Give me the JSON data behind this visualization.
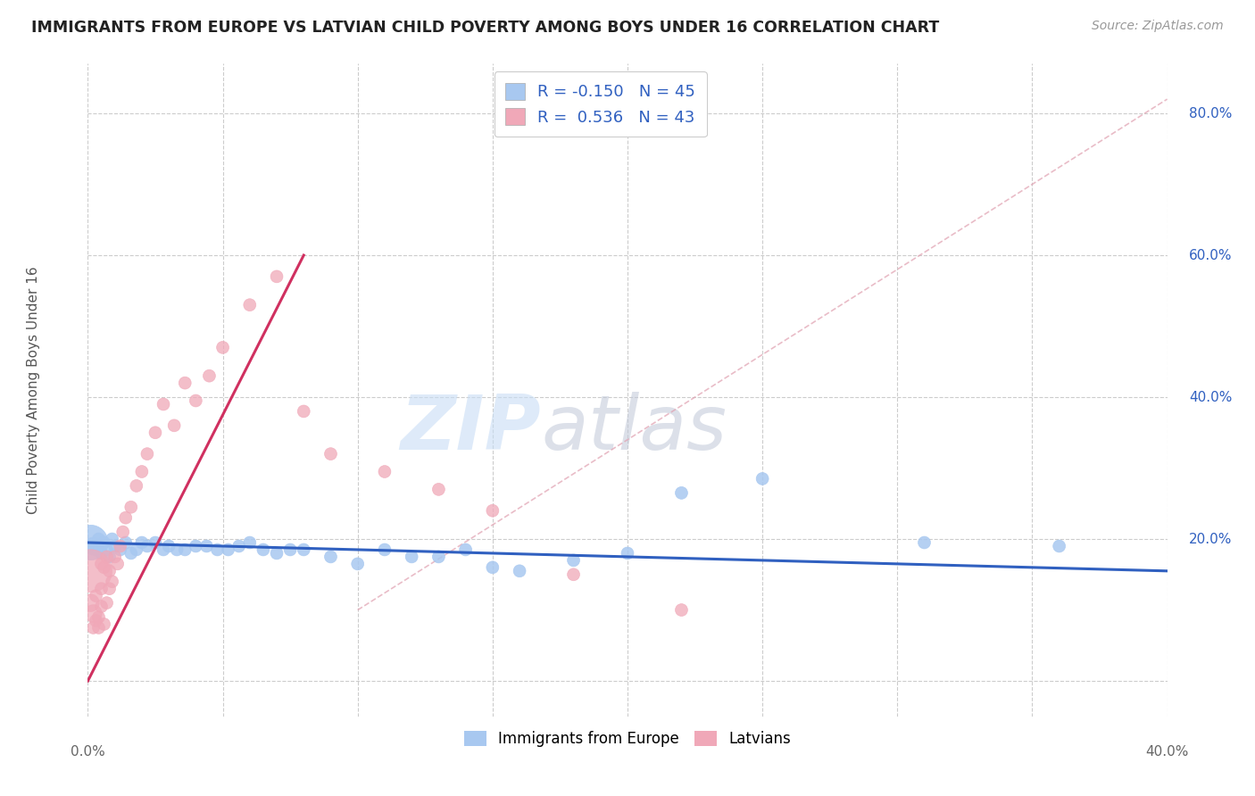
{
  "title": "IMMIGRANTS FROM EUROPE VS LATVIAN CHILD POVERTY AMONG BOYS UNDER 16 CORRELATION CHART",
  "source": "Source: ZipAtlas.com",
  "ylabel": "Child Poverty Among Boys Under 16",
  "xlim": [
    0.0,
    0.4
  ],
  "ylim": [
    -0.05,
    0.87
  ],
  "xticks": [
    0.0,
    0.05,
    0.1,
    0.15,
    0.2,
    0.25,
    0.3,
    0.35,
    0.4
  ],
  "yticks": [
    0.0,
    0.2,
    0.4,
    0.6,
    0.8
  ],
  "blue_R": -0.15,
  "blue_N": 45,
  "pink_R": 0.536,
  "pink_N": 43,
  "blue_color": "#a8c8f0",
  "pink_color": "#f0a8b8",
  "blue_line_color": "#3060c0",
  "pink_line_color": "#d03060",
  "watermark_zip": "ZIP",
  "watermark_atlas": "atlas",
  "background_color": "#ffffff",
  "grid_color": "#cccccc",
  "blue_scatter_x": [
    0.001,
    0.002,
    0.003,
    0.004,
    0.005,
    0.006,
    0.007,
    0.008,
    0.009,
    0.01,
    0.012,
    0.014,
    0.016,
    0.018,
    0.02,
    0.022,
    0.025,
    0.028,
    0.03,
    0.033,
    0.036,
    0.04,
    0.044,
    0.048,
    0.052,
    0.056,
    0.06,
    0.065,
    0.07,
    0.075,
    0.08,
    0.09,
    0.1,
    0.11,
    0.12,
    0.13,
    0.14,
    0.15,
    0.16,
    0.18,
    0.2,
    0.22,
    0.25,
    0.31,
    0.36
  ],
  "blue_scatter_y": [
    0.195,
    0.19,
    0.185,
    0.2,
    0.18,
    0.195,
    0.185,
    0.175,
    0.2,
    0.19,
    0.185,
    0.195,
    0.18,
    0.185,
    0.195,
    0.19,
    0.195,
    0.185,
    0.19,
    0.185,
    0.185,
    0.19,
    0.19,
    0.185,
    0.185,
    0.19,
    0.195,
    0.185,
    0.18,
    0.185,
    0.185,
    0.175,
    0.165,
    0.185,
    0.175,
    0.175,
    0.185,
    0.16,
    0.155,
    0.17,
    0.18,
    0.265,
    0.285,
    0.195,
    0.19
  ],
  "blue_scatter_size": [
    800,
    200,
    100,
    100,
    100,
    100,
    100,
    100,
    100,
    100,
    100,
    100,
    100,
    100,
    100,
    100,
    100,
    100,
    100,
    100,
    100,
    100,
    100,
    100,
    100,
    100,
    100,
    100,
    100,
    100,
    100,
    100,
    100,
    100,
    100,
    100,
    100,
    100,
    100,
    100,
    100,
    100,
    100,
    100,
    100
  ],
  "pink_scatter_x": [
    0.001,
    0.001,
    0.002,
    0.002,
    0.003,
    0.003,
    0.004,
    0.004,
    0.005,
    0.005,
    0.005,
    0.006,
    0.006,
    0.007,
    0.007,
    0.008,
    0.008,
    0.009,
    0.01,
    0.011,
    0.012,
    0.013,
    0.014,
    0.016,
    0.018,
    0.02,
    0.022,
    0.025,
    0.028,
    0.032,
    0.036,
    0.04,
    0.045,
    0.05,
    0.06,
    0.07,
    0.08,
    0.09,
    0.11,
    0.13,
    0.15,
    0.18,
    0.22
  ],
  "pink_scatter_y": [
    0.155,
    0.11,
    0.095,
    0.075,
    0.085,
    0.12,
    0.09,
    0.075,
    0.105,
    0.13,
    0.165,
    0.08,
    0.16,
    0.11,
    0.175,
    0.13,
    0.155,
    0.14,
    0.175,
    0.165,
    0.19,
    0.21,
    0.23,
    0.245,
    0.275,
    0.295,
    0.32,
    0.35,
    0.39,
    0.36,
    0.42,
    0.395,
    0.43,
    0.47,
    0.53,
    0.57,
    0.38,
    0.32,
    0.295,
    0.27,
    0.24,
    0.15,
    0.1
  ],
  "pink_scatter_size": [
    1200,
    200,
    200,
    100,
    100,
    100,
    100,
    100,
    100,
    100,
    100,
    100,
    100,
    100,
    100,
    100,
    100,
    100,
    100,
    100,
    100,
    100,
    100,
    100,
    100,
    100,
    100,
    100,
    100,
    100,
    100,
    100,
    100,
    100,
    100,
    100,
    100,
    100,
    100,
    100,
    100,
    100,
    100
  ],
  "pink_line_x": [
    0.0,
    0.08
  ],
  "pink_line_y": [
    0.0,
    0.6
  ],
  "blue_line_x": [
    0.0,
    0.4
  ],
  "blue_line_y": [
    0.195,
    0.155
  ],
  "diag_line_x": [
    0.1,
    0.4
  ],
  "diag_line_y": [
    0.1,
    0.82
  ]
}
